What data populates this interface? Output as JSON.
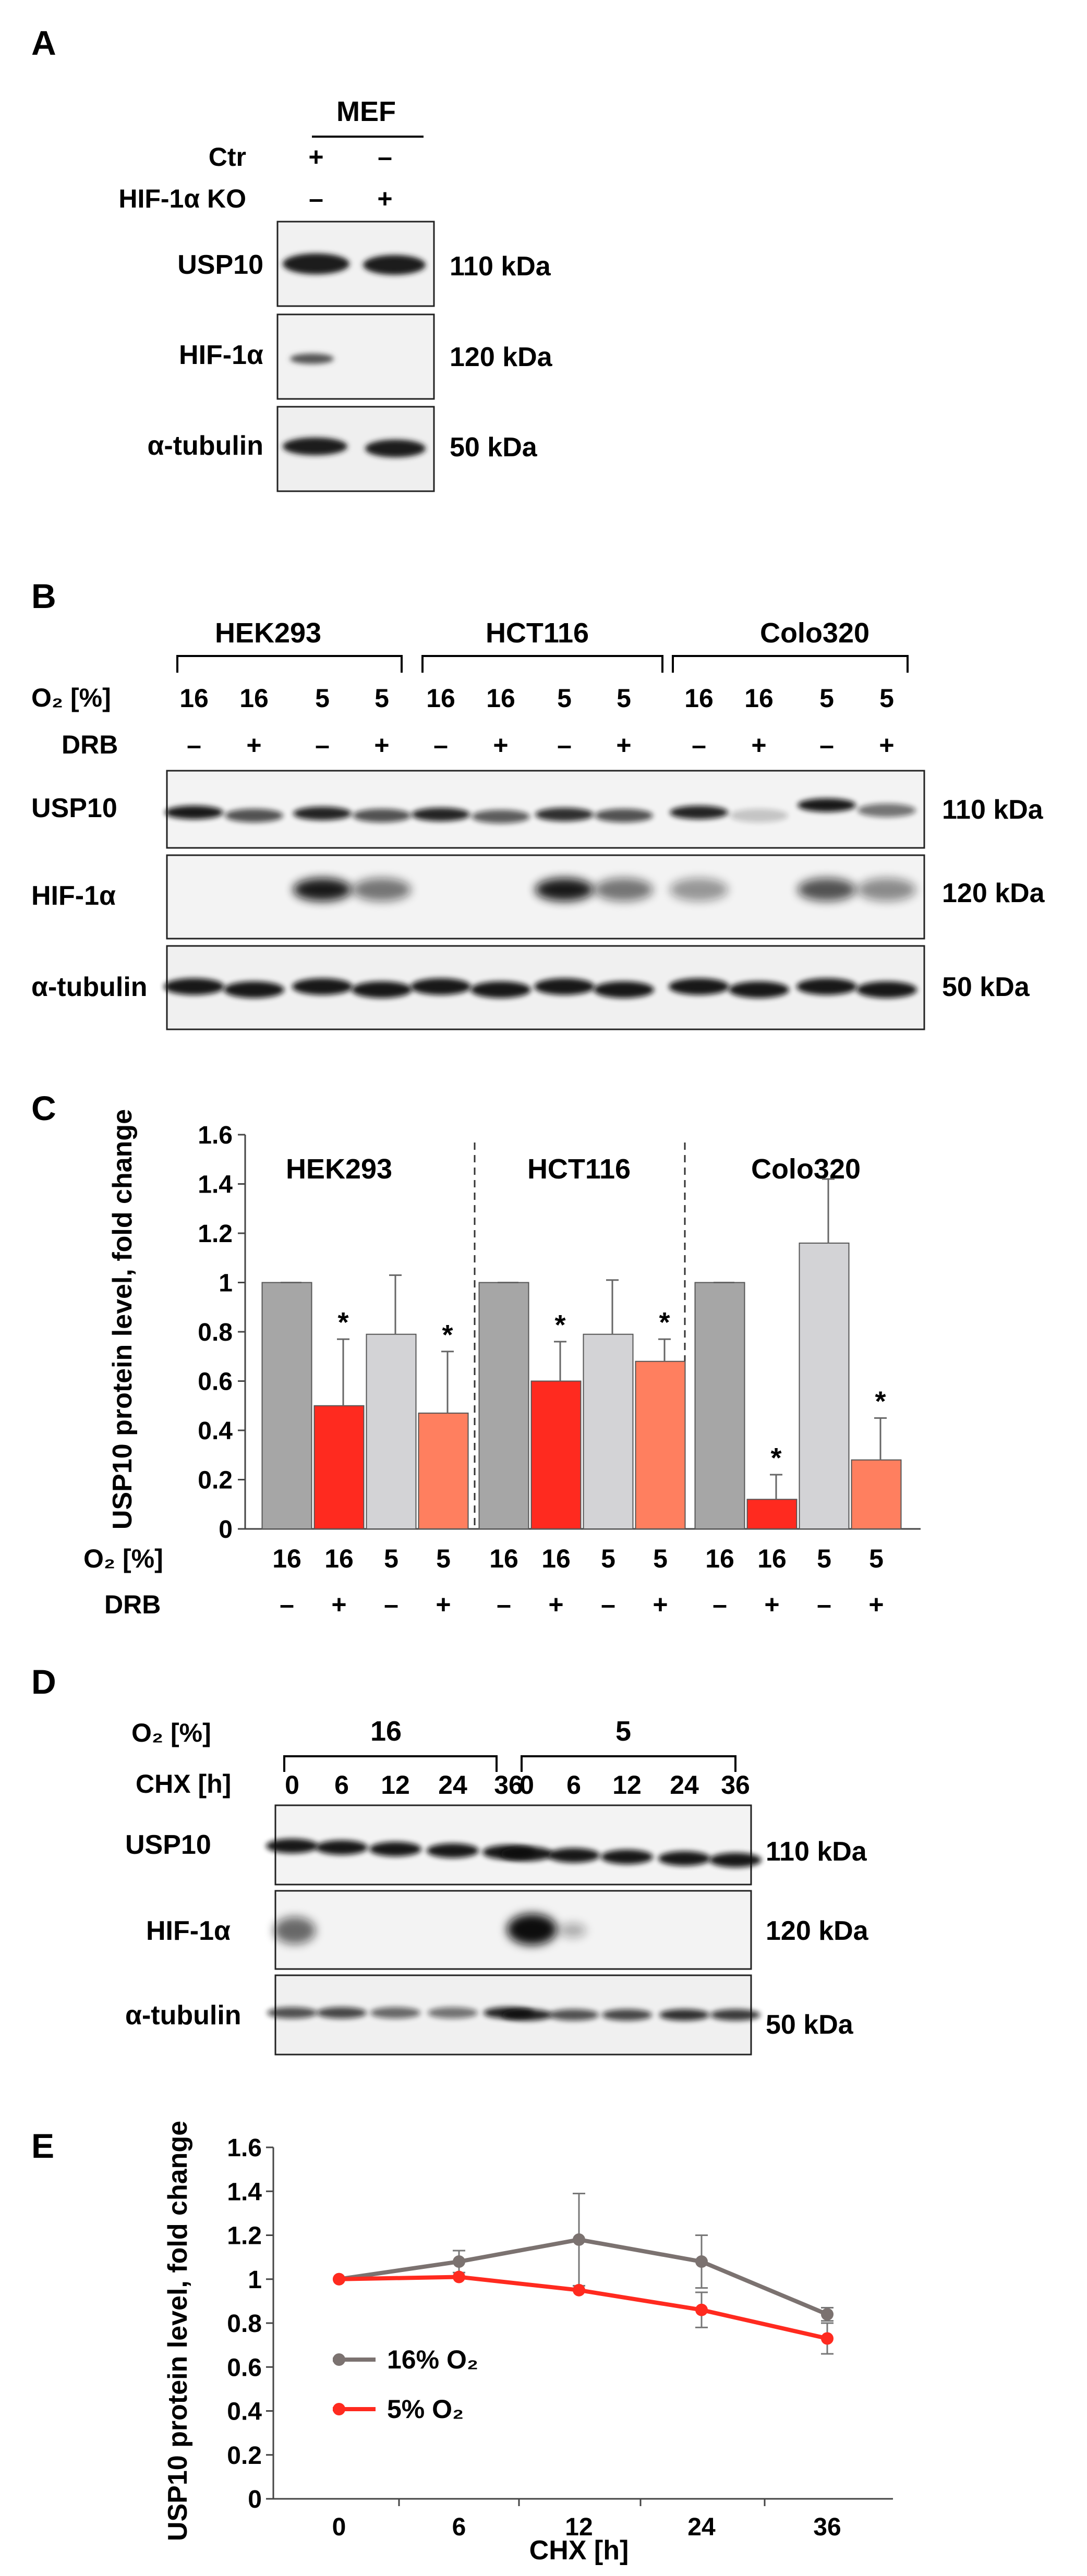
{
  "panels": {
    "a": "A",
    "b": "B",
    "c": "C",
    "d": "D",
    "e": "E"
  },
  "panel_a": {
    "group": "MEF",
    "rows": [
      {
        "label": "Ctr",
        "values": [
          "+",
          "–"
        ]
      },
      {
        "label": "HIF-1α KO",
        "values": [
          "–",
          "+"
        ]
      }
    ],
    "blots": [
      {
        "label": "USP10",
        "kda": "110 kDa"
      },
      {
        "label": "HIF-1α",
        "kda": "120 kDa"
      },
      {
        "label": "α-tubulin",
        "kda": "50 kDa"
      }
    ]
  },
  "panel_b": {
    "groups": [
      "HEK293",
      "HCT116",
      "Colo320"
    ],
    "o2_label": "O₂ [%]",
    "drb_label": "DRB",
    "o2_values": [
      "16",
      "16",
      "5",
      "5",
      "16",
      "16",
      "5",
      "5",
      "16",
      "16",
      "5",
      "5"
    ],
    "drb_values": [
      "–",
      "+",
      "–",
      "+",
      "–",
      "+",
      "–",
      "+",
      "–",
      "+",
      "–",
      "+"
    ],
    "blots": [
      {
        "label": "USP10",
        "kda": "110 kDa"
      },
      {
        "label": "HIF-1α",
        "kda": "120 kDa"
      },
      {
        "label": "α-tubulin",
        "kda": "50 kDa"
      }
    ]
  },
  "panel_d": {
    "o2_label": "O₂ [%]",
    "chx_label": "CHX [h]",
    "groups": [
      "16",
      "5"
    ],
    "chx_values": [
      "0",
      "6",
      "12",
      "24",
      "36",
      "0",
      "6",
      "12",
      "24",
      "36"
    ],
    "blots": [
      {
        "label": "USP10",
        "kda": "110 kDa"
      },
      {
        "label": "HIF-1α",
        "kda": "120 kDa"
      },
      {
        "label": "α-tubulin",
        "kda": "50 kDa"
      }
    ]
  },
  "chart_data": [
    {
      "type": "bar",
      "panel": "C",
      "ylabel": "USP10 protein level, fold change",
      "ylim": [
        0,
        1.6
      ],
      "yticks": [
        "0",
        "0.2",
        "0.4",
        "0.6",
        "0.8",
        "1",
        "1.2",
        "1.4",
        "1.6"
      ],
      "groups": [
        "HEK293",
        "HCT116",
        "Colo320"
      ],
      "o2_label": "O₂ [%]",
      "drb_label": "DRB",
      "o2_values": [
        "16",
        "16",
        "5",
        "5",
        "16",
        "16",
        "5",
        "5",
        "16",
        "16",
        "5",
        "5"
      ],
      "drb_values": [
        "–",
        "+",
        "–",
        "+",
        "–",
        "+",
        "–",
        "+",
        "–",
        "+",
        "–",
        "+"
      ],
      "values": [
        1.0,
        0.5,
        0.79,
        0.47,
        1.0,
        0.6,
        0.79,
        0.68,
        1.0,
        0.12,
        1.16,
        0.28
      ],
      "errors": [
        0,
        0.27,
        0.24,
        0.25,
        0,
        0.16,
        0.22,
        0.09,
        0,
        0.1,
        0.26,
        0.17
      ],
      "significance": [
        "",
        "*",
        "",
        "*",
        "",
        "*",
        "",
        "*",
        "",
        "*",
        "",
        "*"
      ],
      "colors": [
        "#a6a6a6",
        "#ff2a1f",
        "#d3d3d6",
        "#ff7f5f"
      ]
    },
    {
      "type": "line",
      "panel": "E",
      "xlabel": "CHX [h]",
      "ylabel": "USP10 protein level, fold change",
      "x": [
        0,
        6,
        12,
        24,
        36
      ],
      "xticks": [
        "0",
        "6",
        "12",
        "24",
        "36"
      ],
      "ylim": [
        0,
        1.6
      ],
      "yticks": [
        "0",
        "0.2",
        "0.4",
        "0.6",
        "0.8",
        "1",
        "1.2",
        "1.4",
        "1.6"
      ],
      "legend_position": "center-left",
      "series": [
        {
          "name": "16% O₂",
          "color": "#7b7270",
          "values": [
            1.0,
            1.08,
            1.18,
            1.08,
            0.84
          ],
          "errors": [
            0,
            0.05,
            0.21,
            0.12,
            0.03
          ]
        },
        {
          "name": "5% O₂",
          "color": "#ff2a1f",
          "values": [
            1.0,
            1.01,
            0.95,
            0.86,
            0.73
          ],
          "errors": [
            0,
            0,
            0,
            0.08,
            0.07
          ]
        }
      ]
    }
  ]
}
